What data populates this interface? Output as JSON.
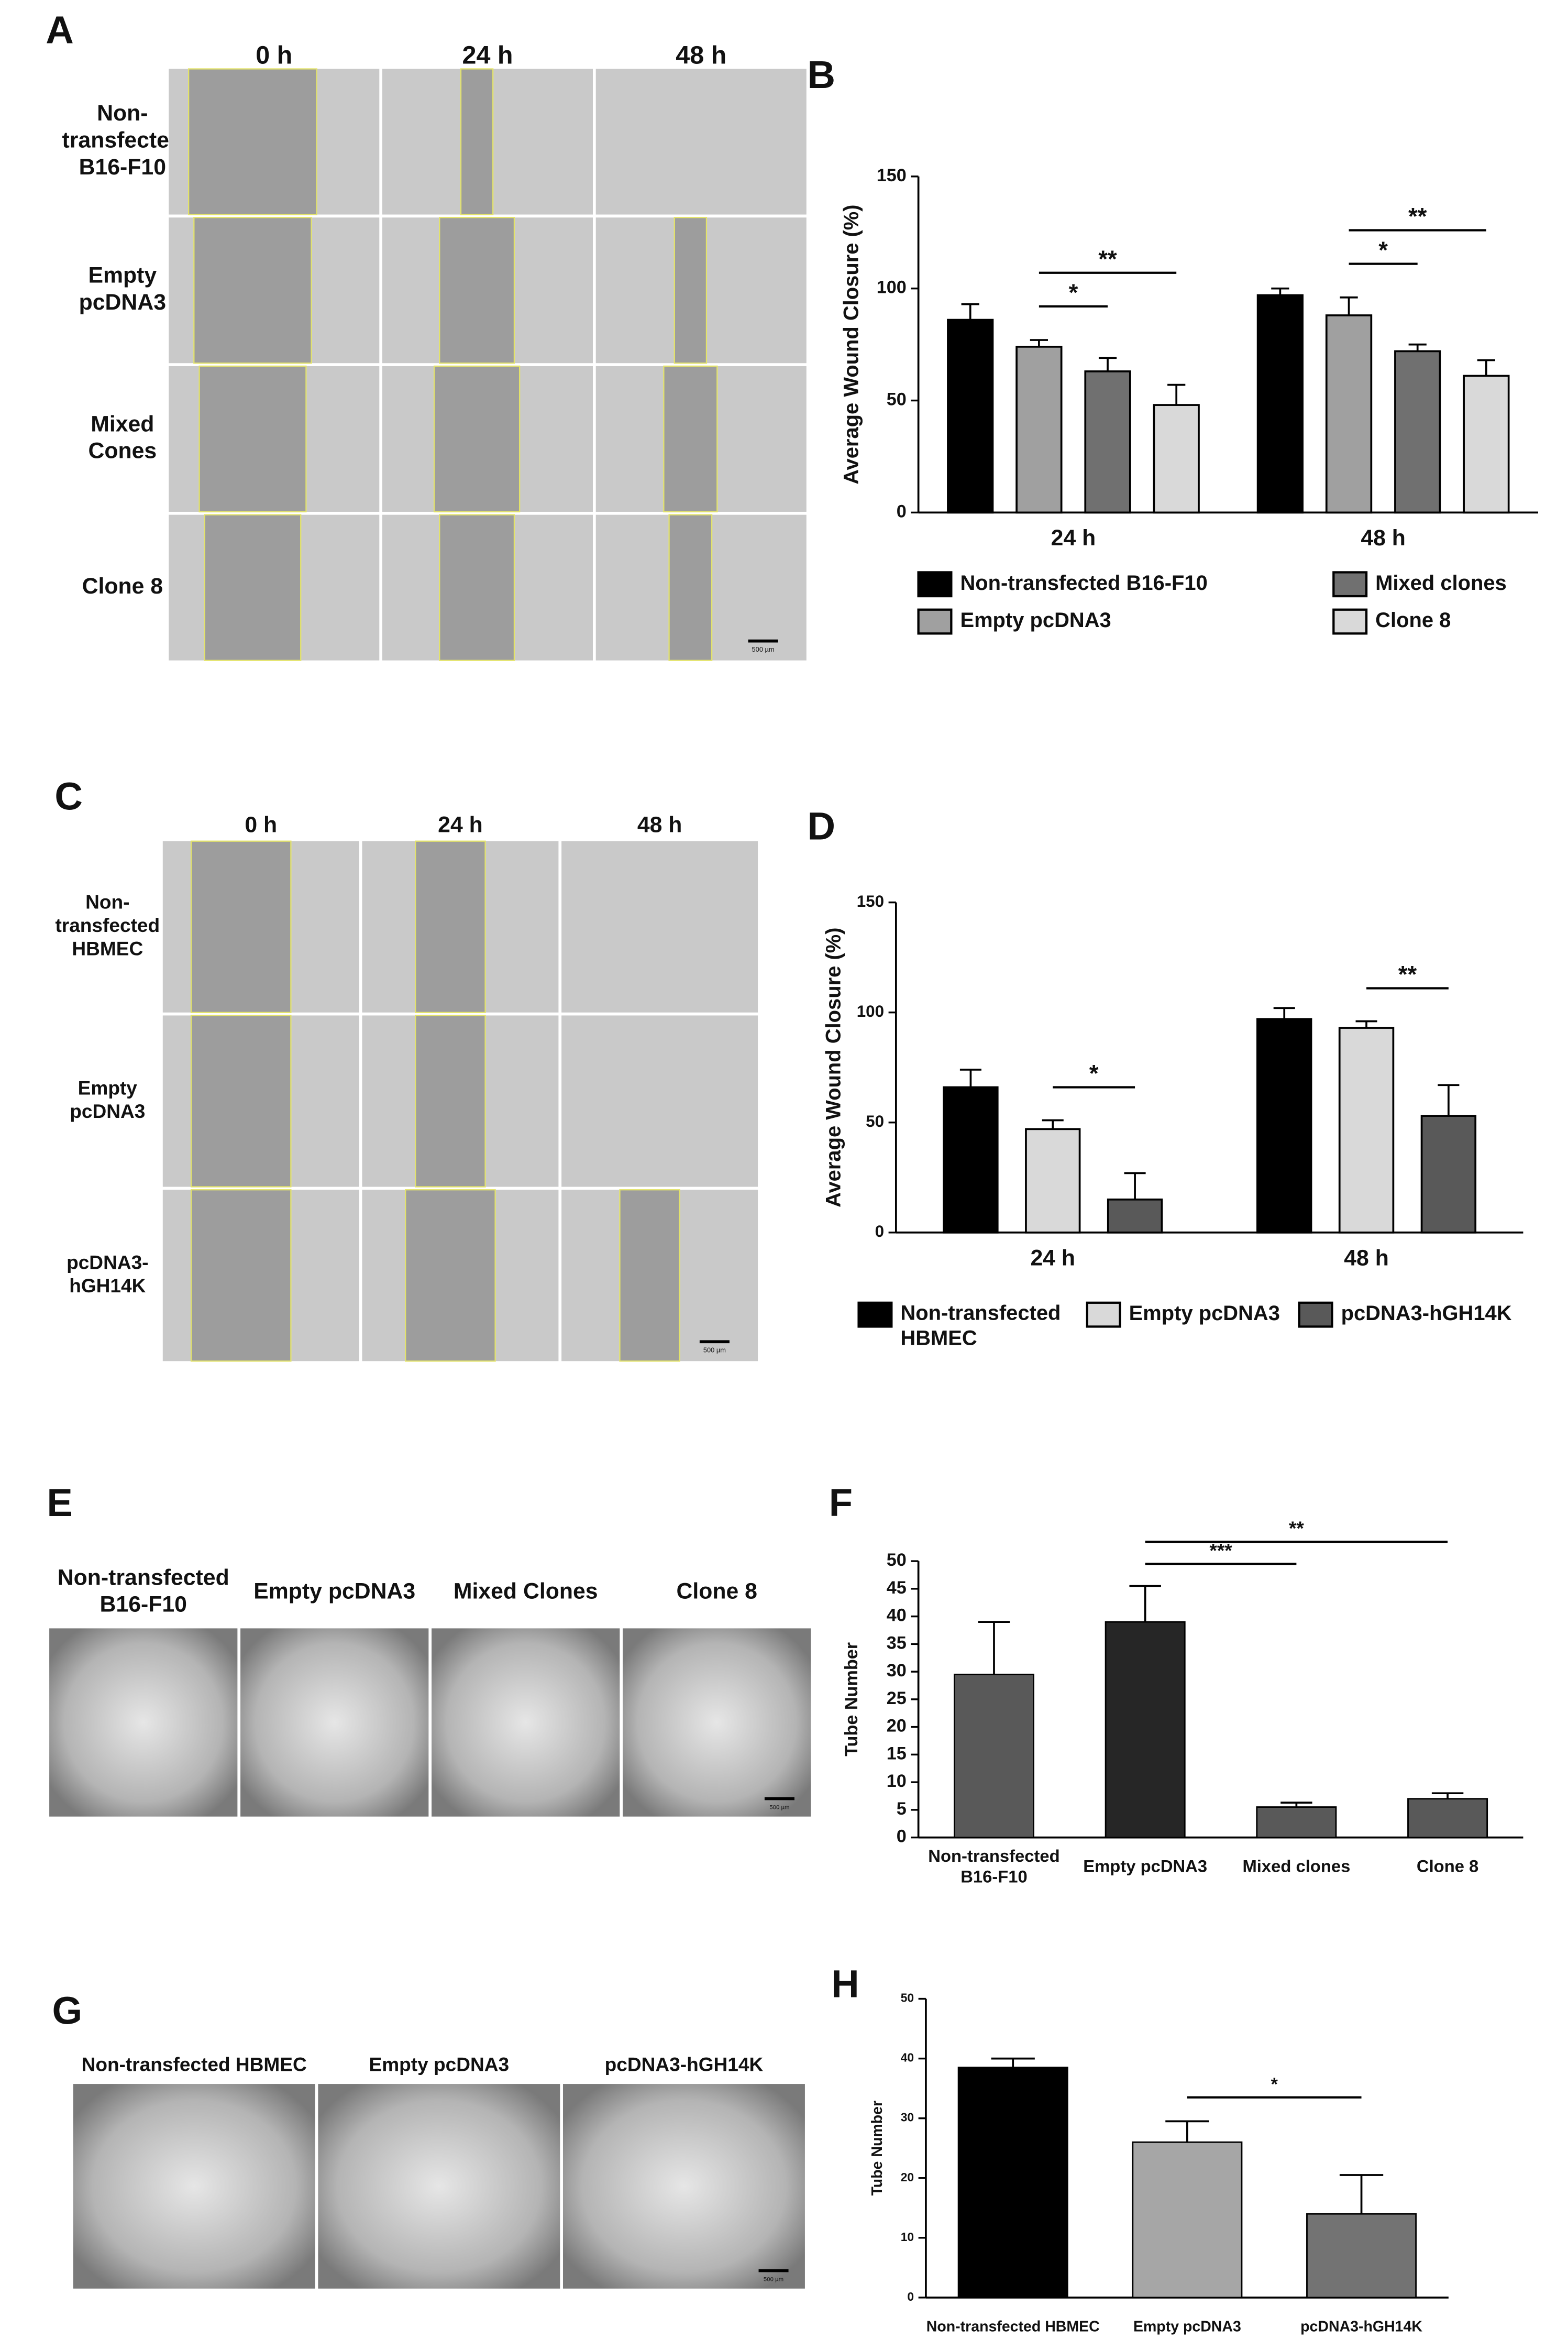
{
  "panel_labels": [
    "A",
    "B",
    "C",
    "D",
    "E",
    "F",
    "G",
    "H"
  ],
  "wound_assay_B16": {
    "columns": [
      "0 h",
      "24 h",
      "48 h"
    ],
    "rows": [
      "Non-\ntransfected\nB16-F10",
      "Empty\npcDNA3",
      "Mixed\nCones",
      "Clone 8"
    ],
    "scale_bar": "500 µm"
  },
  "wound_assay_HBMEC": {
    "columns": [
      "0 h",
      "24 h",
      "48 h"
    ],
    "rows": [
      "Non-\ntransfected\nHBMEC",
      "Empty\npcDNA3",
      "pcDNA3-\nhGH14K"
    ],
    "scale_bar": "500 µm"
  },
  "tube_assay_B16": {
    "labels": [
      "Non-transfected\nB16-F10",
      "Empty pcDNA3",
      "Mixed Clones",
      "Clone 8"
    ],
    "scale_bar": "500 µm"
  },
  "tube_assay_HBMEC": {
    "labels": [
      "Non-transfected HBMEC",
      "Empty pcDNA3",
      "pcDNA3-hGH14K"
    ],
    "scale_bar": "500 µm"
  },
  "chart_data": [
    {
      "type": "bar",
      "y_label": "Average Wound Closure (%)",
      "categories": [
        "24 h",
        "48 h"
      ],
      "series": [
        {
          "name": "Non-transfected B16-F10",
          "color": "#000000",
          "values": [
            86,
            97
          ],
          "errors": [
            7,
            3
          ]
        },
        {
          "name": "Empty pcDNA3",
          "color": "#a0a0a0",
          "values": [
            74,
            88
          ],
          "errors": [
            3,
            8
          ]
        },
        {
          "name": "Mixed clones",
          "color": "#707070",
          "values": [
            63,
            72
          ],
          "errors": [
            6,
            3
          ]
        },
        {
          "name": "Clone 8",
          "color": "#d9d9d9",
          "values": [
            48,
            61
          ],
          "errors": [
            9,
            7
          ]
        }
      ],
      "ylim": [
        0,
        150
      ],
      "yticks": [
        0,
        50,
        100,
        150
      ],
      "significance": [
        {
          "label": "*",
          "category": 0,
          "from": 1,
          "to": 2
        },
        {
          "label": "**",
          "category": 0,
          "from": 1,
          "to": 3
        },
        {
          "label": "*",
          "category": 1,
          "from": 1,
          "to": 2
        },
        {
          "label": "**",
          "category": 1,
          "from": 1,
          "to": 3
        }
      ]
    },
    {
      "type": "bar",
      "y_label": "Average Wound Closure (%)",
      "categories": [
        "24 h",
        "48 h"
      ],
      "series": [
        {
          "name": "Non-transfected\nHBMEC",
          "color": "#000000",
          "values": [
            66,
            97
          ],
          "errors": [
            8,
            5
          ]
        },
        {
          "name": "Empty pcDNA3",
          "color": "#d9d9d9",
          "values": [
            47,
            93
          ],
          "errors": [
            4,
            3
          ]
        },
        {
          "name": "pcDNA3-hGH14K",
          "color": "#595959",
          "values": [
            15,
            53
          ],
          "errors": [
            12,
            14
          ]
        }
      ],
      "ylim": [
        0,
        150
      ],
      "yticks": [
        0,
        50,
        100,
        150
      ],
      "significance": [
        {
          "label": "*",
          "category": 0,
          "from": 1,
          "to": 2
        },
        {
          "label": "**",
          "category": 1,
          "from": 1,
          "to": 2
        }
      ]
    },
    {
      "type": "bar",
      "y_label": "Tube Number",
      "categories": [
        "Non-transfected\nB16-F10",
        "Empty pcDNA3",
        "Mixed clones",
        "Clone 8"
      ],
      "values": [
        29.5,
        39,
        5.5,
        7
      ],
      "errors": [
        9.5,
        6.5,
        0.8,
        1
      ],
      "colors": [
        "#595959",
        "#262626",
        "#595959",
        "#595959"
      ],
      "ylim": [
        0,
        50
      ],
      "yticks": [
        0,
        5,
        10,
        15,
        20,
        25,
        30,
        35,
        40,
        45,
        50
      ],
      "significance": [
        {
          "label": "***",
          "from": 1,
          "to": 2
        },
        {
          "label": "**",
          "from": 1,
          "to": 3
        }
      ]
    },
    {
      "type": "bar",
      "y_label": "Tube Number",
      "categories": [
        "Non-transfected HBMEC",
        "Empty pcDNA3",
        "pcDNA3-hGH14K"
      ],
      "values": [
        38.5,
        26,
        14
      ],
      "errors": [
        1.5,
        3.5,
        6.5
      ],
      "colors": [
        "#000000",
        "#a6a6a6",
        "#737373"
      ],
      "ylim": [
        0,
        50
      ],
      "yticks": [
        0,
        10,
        20,
        30,
        40,
        50
      ],
      "significance": [
        {
          "label": "*",
          "from": 1,
          "to": 2
        }
      ]
    }
  ]
}
